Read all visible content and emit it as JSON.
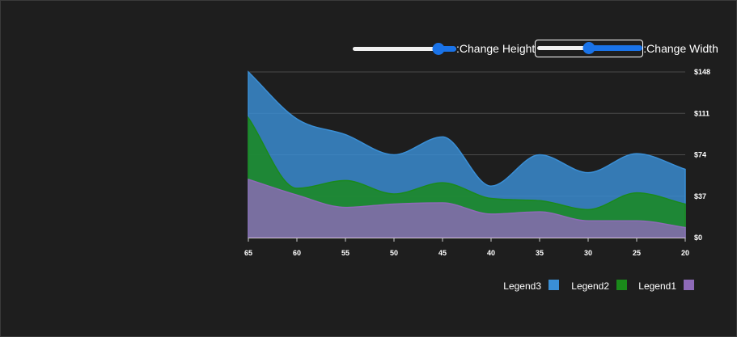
{
  "controls": {
    "height_label": ":Change Height",
    "width_label": ":Change Width",
    "height_value": 0.83,
    "width_value": 0.5
  },
  "chart_data": {
    "type": "area",
    "x": [
      65,
      60,
      55,
      50,
      45,
      40,
      35,
      30,
      25,
      20
    ],
    "y_ticks": [
      "$0",
      "$37",
      "$74",
      "$111",
      "$148"
    ],
    "ylim": [
      0,
      148
    ],
    "grid": true,
    "legend_position": "bottom-right",
    "stacked": true,
    "series": [
      {
        "name": "Legend1",
        "color": "#8e6ab8",
        "values": [
          52,
          38,
          27,
          30,
          31,
          21,
          23,
          15,
          15,
          9
        ]
      },
      {
        "name": "Legend2",
        "color": "#1a8a1a",
        "values": [
          55,
          6,
          24,
          9,
          18,
          14,
          10,
          10,
          25,
          21
        ]
      },
      {
        "name": "Legend3",
        "color": "#3a8fd6",
        "values": [
          41,
          62,
          41,
          35,
          41,
          11,
          41,
          33,
          35,
          31
        ]
      }
    ],
    "legend_order": [
      "Legend3",
      "Legend2",
      "Legend1"
    ]
  }
}
